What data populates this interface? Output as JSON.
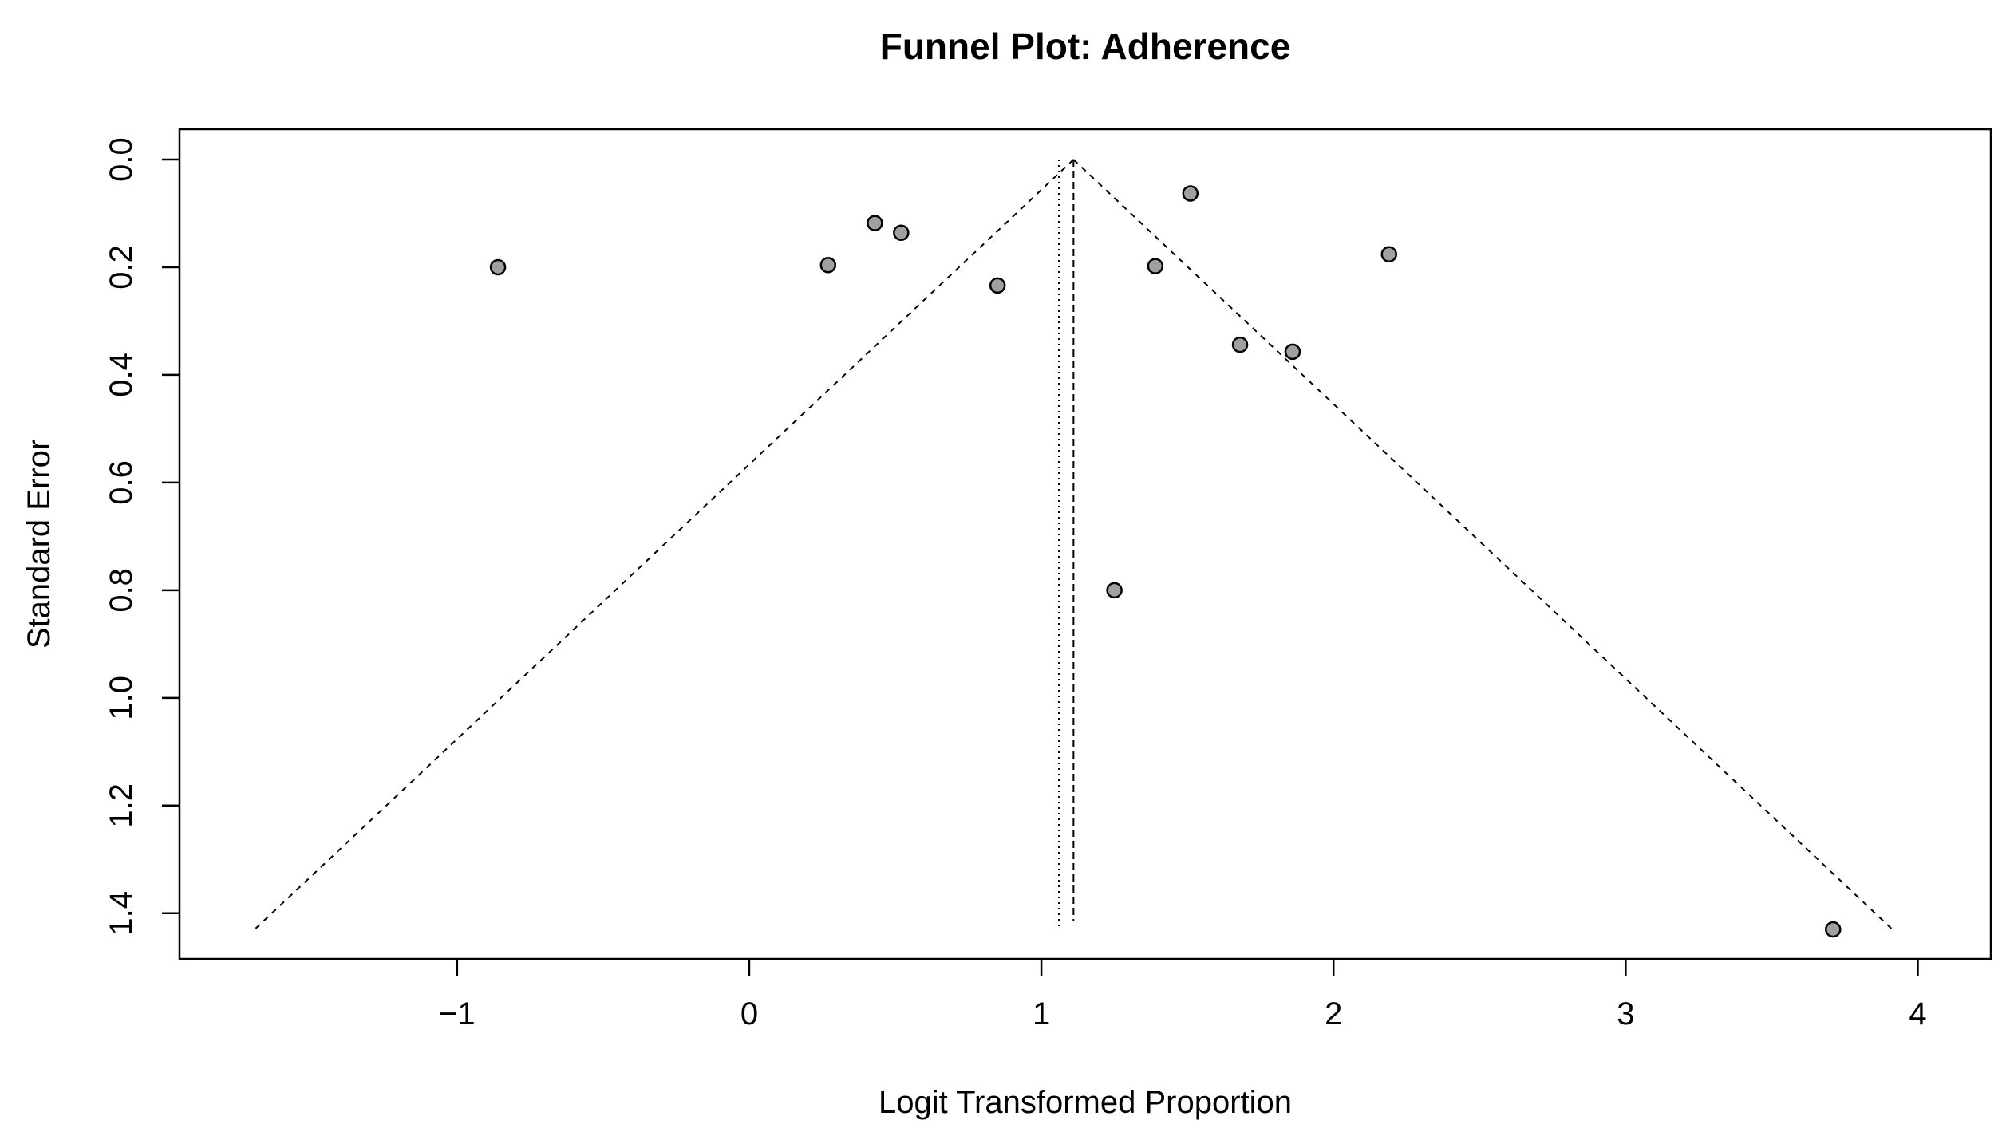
{
  "chart_data": {
    "type": "scatter",
    "title": "Funnel Plot: Adherence",
    "xlabel": "Logit Transformed Proportion",
    "ylabel": "Standard Error",
    "xlim": [
      -1.95,
      4.25
    ],
    "ylim": [
      0.0,
      1.43
    ],
    "y_inverted": true,
    "xticks": [
      -1,
      0,
      1,
      2,
      3,
      4
    ],
    "xtick_labels": [
      "−1",
      "0",
      "1",
      "2",
      "3",
      "4"
    ],
    "yticks": [
      0.0,
      0.2,
      0.4,
      0.6,
      0.8,
      1.0,
      1.2,
      1.4
    ],
    "ytick_labels": [
      "0.0",
      "0.2",
      "0.4",
      "0.6",
      "0.8",
      "1.0",
      "1.2",
      "1.4"
    ],
    "grid": false,
    "legend": "none",
    "pooled_estimate": 1.11,
    "reference_line": 1.06,
    "funnel_multiplier": 1.96,
    "point_fill": "#a0a0a0",
    "point_stroke": "#000000",
    "points": [
      {
        "x": -0.86,
        "y": 0.2
      },
      {
        "x": 0.27,
        "y": 0.196
      },
      {
        "x": 0.43,
        "y": 0.118
      },
      {
        "x": 0.52,
        "y": 0.136
      },
      {
        "x": 0.85,
        "y": 0.234
      },
      {
        "x": 1.25,
        "y": 0.8
      },
      {
        "x": 1.39,
        "y": 0.198
      },
      {
        "x": 1.51,
        "y": 0.063
      },
      {
        "x": 1.68,
        "y": 0.344
      },
      {
        "x": 1.86,
        "y": 0.357
      },
      {
        "x": 2.19,
        "y": 0.176
      },
      {
        "x": 3.71,
        "y": 1.43
      }
    ]
  }
}
